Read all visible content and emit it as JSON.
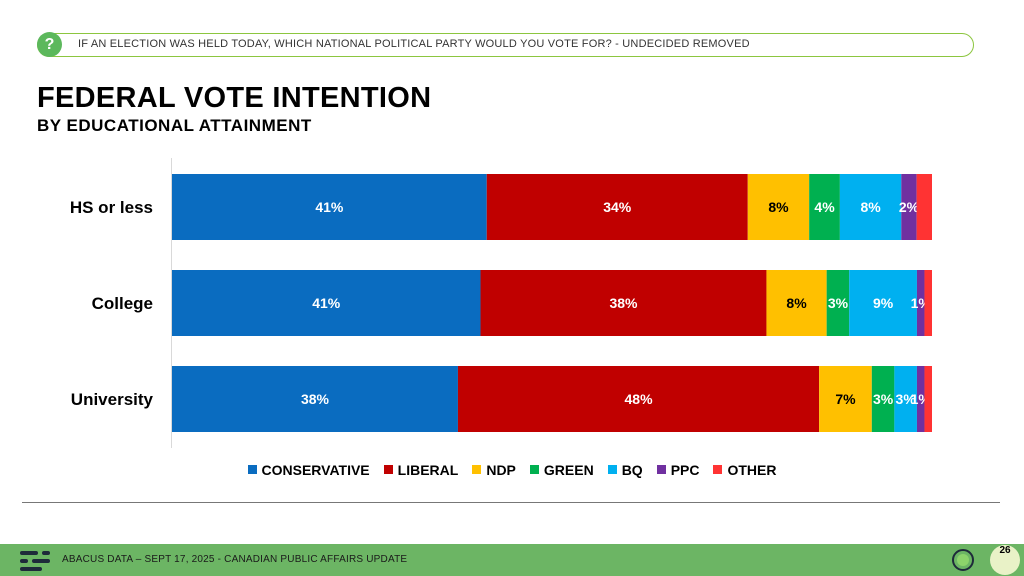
{
  "question": {
    "icon": "question-mark-icon",
    "icon_glyph": "?",
    "text": "IF AN ELECTION WAS HELD TODAY, WHICH NATIONAL POLITICAL PARTY WOULD YOU VOTE FOR? - UNDECIDED REMOVED"
  },
  "footer": {
    "text": "ABACUS DATA – SEPT 17, 2025 - CANADIAN PUBLIC AFFAIRS UPDATE",
    "page_number": "26"
  },
  "chart_data": {
    "type": "bar",
    "orientation": "horizontal",
    "stacked": true,
    "title": "FEDERAL VOTE INTENTION",
    "subtitle": "BY EDUCATIONAL ATTAINMENT",
    "categories": [
      "HS or less",
      "College",
      "University"
    ],
    "xlim": [
      0,
      100
    ],
    "grid": false,
    "legend_position": "bottom",
    "series": [
      {
        "name": "CONSERVATIVE",
        "color": "#0a6cc0",
        "values": [
          41,
          41,
          38
        ],
        "labels": [
          "41%",
          "41%",
          "38%"
        ]
      },
      {
        "name": "LIBERAL",
        "color": "#c00000",
        "values": [
          34,
          38,
          48
        ],
        "labels": [
          "34%",
          "38%",
          "48%"
        ]
      },
      {
        "name": "NDP",
        "color": "#ffc000",
        "values": [
          8,
          8,
          7
        ],
        "labels": [
          "8%",
          "8%",
          "7%"
        ]
      },
      {
        "name": "GREEN",
        "color": "#00b050",
        "values": [
          4,
          3,
          3
        ],
        "labels": [
          "4%",
          "3%",
          "3%"
        ]
      },
      {
        "name": "BQ",
        "color": "#00b0f0",
        "values": [
          8,
          9,
          3
        ],
        "labels": [
          "8%",
          "9%",
          "3%"
        ]
      },
      {
        "name": "PPC",
        "color": "#7030a0",
        "values": [
          2,
          1,
          1
        ],
        "labels": [
          "2%",
          "1%",
          "1%"
        ]
      },
      {
        "name": "OTHER",
        "color": "#ff3333",
        "values": [
          2,
          1,
          1
        ],
        "labels": [
          "",
          "",
          ""
        ]
      }
    ]
  }
}
